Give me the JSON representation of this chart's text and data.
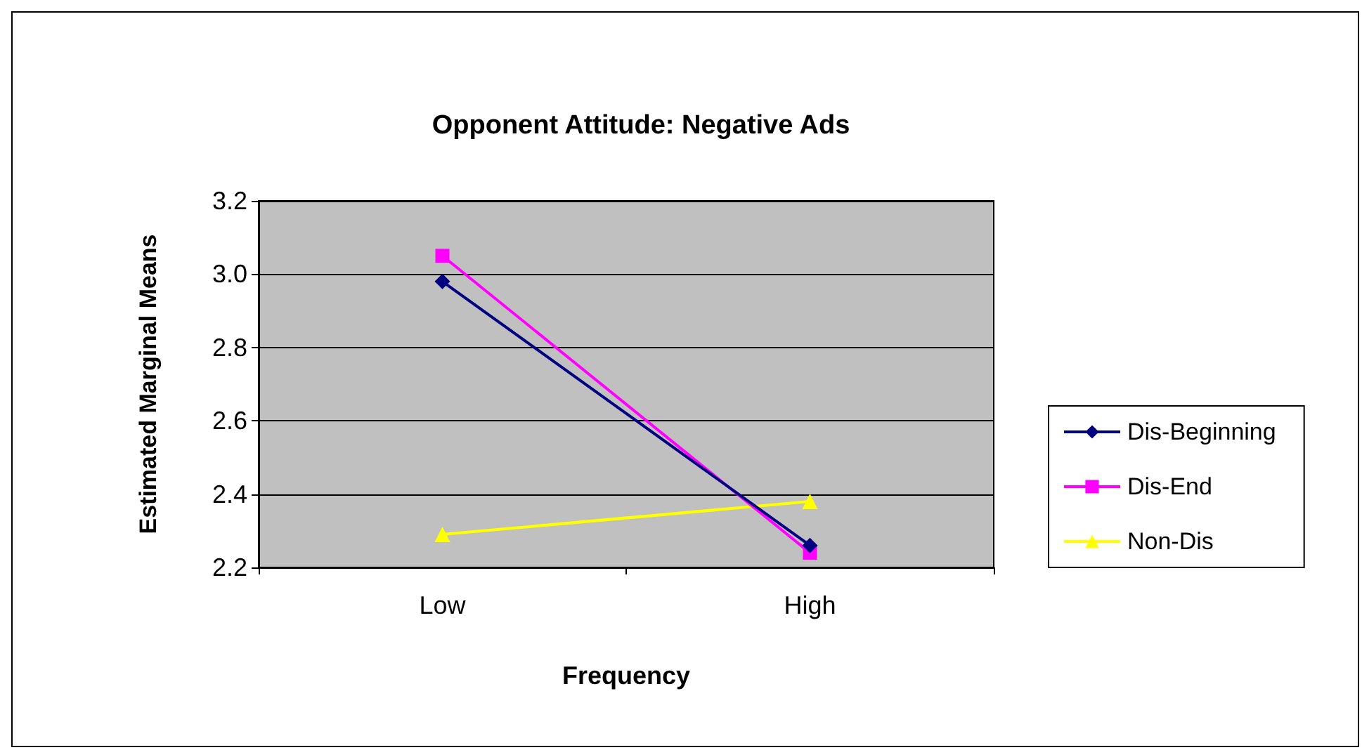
{
  "chart_data": {
    "type": "line",
    "title": "Opponent Attitude: Negative Ads",
    "xlabel": "Frequency",
    "ylabel": "Estimated Marginal Means",
    "categories": [
      "Low",
      "High"
    ],
    "series": [
      {
        "name": "Dis-Beginning",
        "color": "#000080",
        "marker": "diamond",
        "values": [
          2.98,
          2.26
        ]
      },
      {
        "name": "Dis-End",
        "color": "#ff00ff",
        "marker": "square",
        "values": [
          3.05,
          2.24
        ]
      },
      {
        "name": "Non-Dis",
        "color": "#ffff00",
        "marker": "triangle",
        "values": [
          2.29,
          2.38
        ]
      }
    ],
    "ylim": [
      2.2,
      3.2
    ],
    "yticks": [
      2.2,
      2.4,
      2.6,
      2.8,
      {
        "value": 3,
        "label": "3.0"
      },
      3.2
    ],
    "grid": "y",
    "legend": "right"
  }
}
